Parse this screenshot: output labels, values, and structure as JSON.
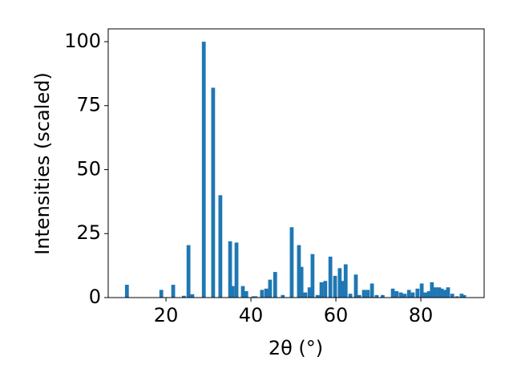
{
  "chart_data": {
    "type": "bar",
    "x_label": "2θ (°)",
    "y_label": "Intensities (scaled)",
    "color": "#1f77b4",
    "x": [
      10.8,
      18.9,
      21.7,
      24.2,
      25.3,
      26.2,
      28.9,
      31.1,
      32.8,
      35.1,
      35.7,
      36.6,
      38.1,
      38.9,
      40.6,
      41.1,
      42.6,
      43.6,
      44.5,
      45.7,
      47.5,
      49.6,
      51.3,
      51.9,
      52.8,
      53.8,
      54.5,
      55.7,
      56.6,
      57.5,
      58.7,
      59.8,
      60.9,
      61.7,
      62.3,
      63.4,
      64.7,
      65.5,
      66.6,
      67.5,
      68.5,
      69.6,
      71.0,
      73.4,
      74.3,
      75.3,
      76.2,
      77.2,
      78.1,
      79.2,
      80.2,
      81.1,
      81.9,
      82.6,
      83.4,
      84.3,
      84.9,
      85.7,
      86.4,
      87.4,
      88.5,
      89.6,
      90.2
    ],
    "values": [
      5,
      3,
      5,
      0.7,
      20.5,
      1.3,
      100,
      82,
      40,
      22,
      4.5,
      21.5,
      4.5,
      2.5,
      0.5,
      0.5,
      3,
      3.5,
      7,
      10,
      1,
      27.5,
      20.5,
      12,
      2,
      4,
      17,
      1,
      6,
      6.5,
      16,
      8.5,
      11.5,
      6.5,
      13,
      1.5,
      9,
      1,
      3,
      3,
      5.5,
      1,
      1,
      3.5,
      2.5,
      2,
      1.5,
      3,
      2,
      3.5,
      5.5,
      2,
      2.5,
      6,
      4,
      4,
      3.5,
      3,
      4,
      1.5,
      0.5,
      1.5,
      1
    ],
    "xlim": [
      6.4,
      94.9
    ],
    "ylim": [
      0,
      105
    ],
    "xticks": [
      20,
      40,
      60,
      80
    ],
    "yticks": [
      0,
      25,
      50,
      75,
      100
    ]
  }
}
